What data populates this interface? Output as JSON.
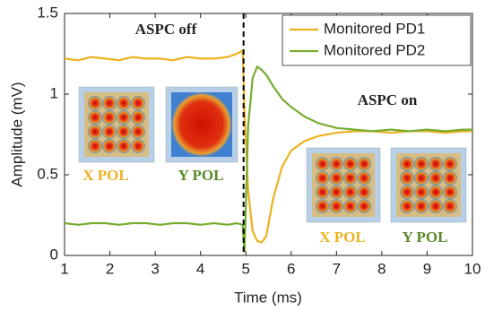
{
  "chart_data": {
    "type": "line",
    "x_label": "Time (ms)",
    "y_label": "Amplitude (mV)",
    "x": [
      1,
      1.3,
      1.6,
      1.9,
      2.2,
      2.5,
      2.8,
      3.1,
      3.4,
      3.7,
      4.0,
      4.3,
      4.6,
      4.8,
      4.93,
      4.97,
      5.05,
      5.15,
      5.25,
      5.35,
      5.45,
      5.6,
      5.8,
      6.0,
      6.3,
      6.6,
      7.0,
      7.4,
      7.8,
      8.2,
      8.6,
      9.0,
      9.4,
      9.8,
      10
    ],
    "series": [
      {
        "name": "Monitored PD1",
        "color": "#edb120",
        "values": [
          1.22,
          1.21,
          1.23,
          1.22,
          1.21,
          1.23,
          1.22,
          1.22,
          1.21,
          1.23,
          1.22,
          1.22,
          1.23,
          1.25,
          1.27,
          0.9,
          0.4,
          0.15,
          0.09,
          0.08,
          0.12,
          0.35,
          0.55,
          0.65,
          0.71,
          0.74,
          0.76,
          0.77,
          0.77,
          0.76,
          0.77,
          0.77,
          0.76,
          0.77,
          0.77
        ]
      },
      {
        "name": "Monitored PD2",
        "color": "#77ac30",
        "values": [
          0.2,
          0.19,
          0.2,
          0.2,
          0.19,
          0.2,
          0.2,
          0.19,
          0.2,
          0.2,
          0.19,
          0.2,
          0.19,
          0.2,
          0.19,
          0.02,
          0.8,
          1.1,
          1.17,
          1.15,
          1.12,
          1.05,
          0.97,
          0.92,
          0.86,
          0.82,
          0.79,
          0.78,
          0.77,
          0.78,
          0.77,
          0.78,
          0.77,
          0.78,
          0.78
        ]
      }
    ],
    "xlim": [
      1,
      10
    ],
    "xticks": [
      1,
      2,
      3,
      4,
      5,
      6,
      7,
      8,
      9,
      10
    ],
    "ylim": [
      0,
      1.5
    ],
    "yticks": [
      0,
      0.5,
      1,
      1.5
    ],
    "vline_x": 4.95,
    "annotations": {
      "off": "ASPC off",
      "on": "ASPC on",
      "x_pol_1": "X POL",
      "y_pol_1": "Y POL",
      "x_pol_2": "X POL",
      "y_pol_2": "Y POL"
    },
    "legend": "upper right"
  }
}
